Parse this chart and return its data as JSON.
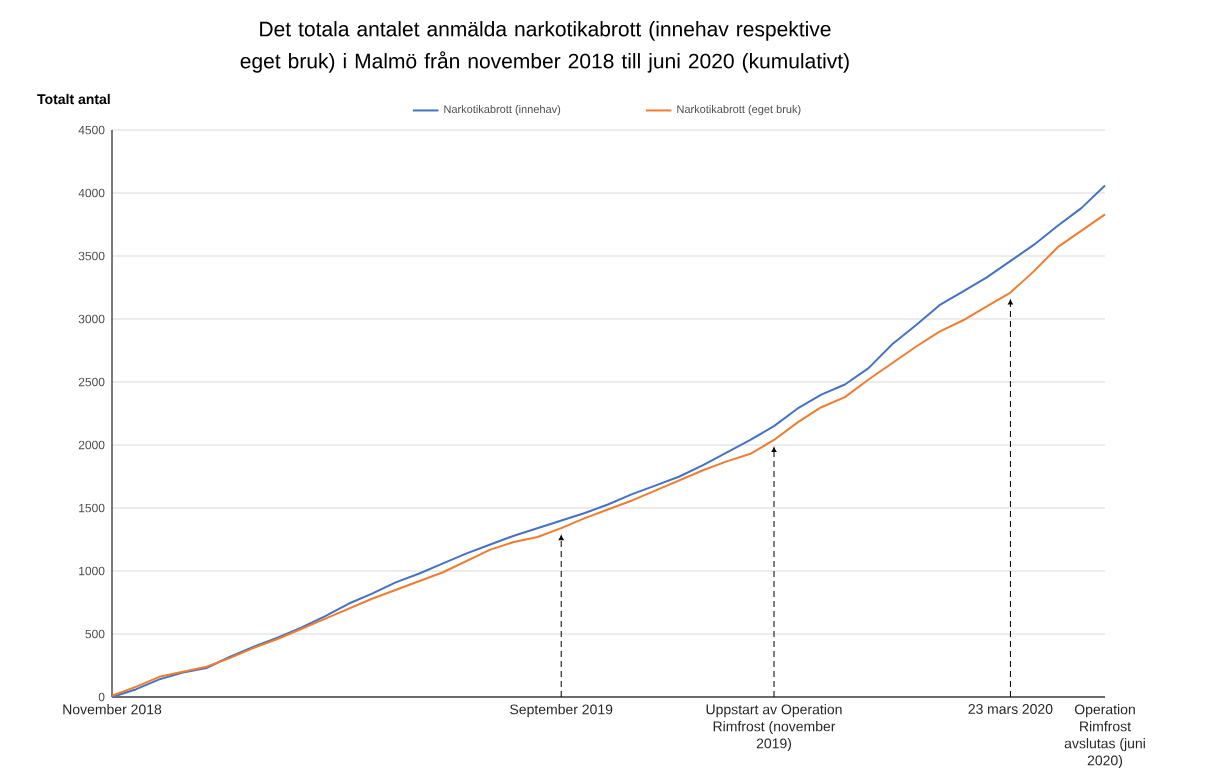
{
  "chart_data": {
    "type": "line",
    "title": "Det totala antalet anmälda narkotikabrott (innehav respektive eget bruk) i Malmö från november 2018 till juni 2020 (kumulativt)",
    "ylabel": "Totalt antal",
    "categories": [
      "November 2018",
      null,
      null,
      null,
      null,
      null,
      null,
      null,
      null,
      null,
      null,
      null,
      null,
      null,
      null,
      null,
      null,
      null,
      null,
      "September 2019",
      null,
      null,
      null,
      null,
      null,
      null,
      null,
      null,
      "Uppstart av Operation Rimfrost (november 2019)",
      null,
      null,
      null,
      null,
      null,
      null,
      null,
      null,
      null,
      "23 mars 2020",
      null,
      null,
      null,
      "Operation Rimfrost avslutas (juni 2020)"
    ],
    "series": [
      {
        "name": "Narkotikabrott (innehav)",
        "color": "#4472c4",
        "values": [
          0,
          60,
          140,
          195,
          230,
          320,
          400,
          470,
          550,
          640,
          740,
          820,
          910,
          980,
          1060,
          1140,
          1210,
          1280,
          1340,
          1400,
          1460,
          1530,
          1610,
          1680,
          1750,
          1840,
          1940,
          2040,
          2150,
          2290,
          2400,
          2480,
          2610,
          2800,
          2950,
          3110,
          3220,
          3330,
          3460,
          3590,
          3740,
          3880,
          4060
        ]
      },
      {
        "name": "Narkotikabrott (eget bruk)",
        "color": "#ed7d31",
        "values": [
          10,
          80,
          160,
          200,
          240,
          310,
          390,
          460,
          540,
          620,
          700,
          780,
          850,
          920,
          990,
          1080,
          1170,
          1230,
          1270,
          1340,
          1420,
          1490,
          1560,
          1640,
          1720,
          1800,
          1870,
          1930,
          2040,
          2180,
          2300,
          2380,
          2520,
          2650,
          2780,
          2900,
          2990,
          3100,
          3210,
          3380,
          3570,
          3700,
          3830
        ]
      }
    ],
    "ylim": [
      0,
      4500
    ],
    "yticks": [
      0,
      500,
      1000,
      1500,
      2000,
      2500,
      3000,
      3500,
      4000,
      4500
    ],
    "grid": "y",
    "legend": "top"
  }
}
